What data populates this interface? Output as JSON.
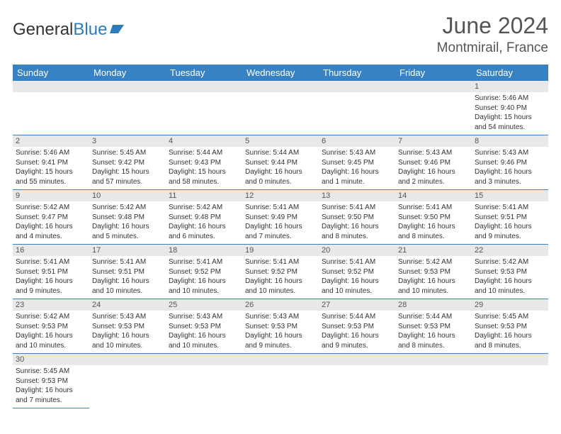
{
  "logo": {
    "prefix": "General",
    "suffix": "Blue"
  },
  "title": {
    "month": "June 2024",
    "location": "Montmirail, France"
  },
  "colors": {
    "header_bg": "#3882c4",
    "header_fg": "#ffffff",
    "daybar_bg": "#e8e8e8",
    "text": "#333333",
    "rule": "#3882c4"
  },
  "weekdays": [
    "Sunday",
    "Monday",
    "Tuesday",
    "Wednesday",
    "Thursday",
    "Friday",
    "Saturday"
  ],
  "weeks": [
    [
      null,
      null,
      null,
      null,
      null,
      null,
      {
        "n": "1",
        "sr": "Sunrise: 5:46 AM",
        "ss": "Sunset: 9:40 PM",
        "d1": "Daylight: 15 hours",
        "d2": "and 54 minutes."
      }
    ],
    [
      {
        "n": "2",
        "sr": "Sunrise: 5:46 AM",
        "ss": "Sunset: 9:41 PM",
        "d1": "Daylight: 15 hours",
        "d2": "and 55 minutes."
      },
      {
        "n": "3",
        "sr": "Sunrise: 5:45 AM",
        "ss": "Sunset: 9:42 PM",
        "d1": "Daylight: 15 hours",
        "d2": "and 57 minutes."
      },
      {
        "n": "4",
        "sr": "Sunrise: 5:44 AM",
        "ss": "Sunset: 9:43 PM",
        "d1": "Daylight: 15 hours",
        "d2": "and 58 minutes."
      },
      {
        "n": "5",
        "sr": "Sunrise: 5:44 AM",
        "ss": "Sunset: 9:44 PM",
        "d1": "Daylight: 16 hours",
        "d2": "and 0 minutes."
      },
      {
        "n": "6",
        "sr": "Sunrise: 5:43 AM",
        "ss": "Sunset: 9:45 PM",
        "d1": "Daylight: 16 hours",
        "d2": "and 1 minute."
      },
      {
        "n": "7",
        "sr": "Sunrise: 5:43 AM",
        "ss": "Sunset: 9:46 PM",
        "d1": "Daylight: 16 hours",
        "d2": "and 2 minutes."
      },
      {
        "n": "8",
        "sr": "Sunrise: 5:43 AM",
        "ss": "Sunset: 9:46 PM",
        "d1": "Daylight: 16 hours",
        "d2": "and 3 minutes."
      }
    ],
    [
      {
        "n": "9",
        "sr": "Sunrise: 5:42 AM",
        "ss": "Sunset: 9:47 PM",
        "d1": "Daylight: 16 hours",
        "d2": "and 4 minutes."
      },
      {
        "n": "10",
        "sr": "Sunrise: 5:42 AM",
        "ss": "Sunset: 9:48 PM",
        "d1": "Daylight: 16 hours",
        "d2": "and 5 minutes."
      },
      {
        "n": "11",
        "sr": "Sunrise: 5:42 AM",
        "ss": "Sunset: 9:48 PM",
        "d1": "Daylight: 16 hours",
        "d2": "and 6 minutes."
      },
      {
        "n": "12",
        "sr": "Sunrise: 5:41 AM",
        "ss": "Sunset: 9:49 PM",
        "d1": "Daylight: 16 hours",
        "d2": "and 7 minutes."
      },
      {
        "n": "13",
        "sr": "Sunrise: 5:41 AM",
        "ss": "Sunset: 9:50 PM",
        "d1": "Daylight: 16 hours",
        "d2": "and 8 minutes."
      },
      {
        "n": "14",
        "sr": "Sunrise: 5:41 AM",
        "ss": "Sunset: 9:50 PM",
        "d1": "Daylight: 16 hours",
        "d2": "and 8 minutes."
      },
      {
        "n": "15",
        "sr": "Sunrise: 5:41 AM",
        "ss": "Sunset: 9:51 PM",
        "d1": "Daylight: 16 hours",
        "d2": "and 9 minutes."
      }
    ],
    [
      {
        "n": "16",
        "sr": "Sunrise: 5:41 AM",
        "ss": "Sunset: 9:51 PM",
        "d1": "Daylight: 16 hours",
        "d2": "and 9 minutes."
      },
      {
        "n": "17",
        "sr": "Sunrise: 5:41 AM",
        "ss": "Sunset: 9:51 PM",
        "d1": "Daylight: 16 hours",
        "d2": "and 10 minutes."
      },
      {
        "n": "18",
        "sr": "Sunrise: 5:41 AM",
        "ss": "Sunset: 9:52 PM",
        "d1": "Daylight: 16 hours",
        "d2": "and 10 minutes."
      },
      {
        "n": "19",
        "sr": "Sunrise: 5:41 AM",
        "ss": "Sunset: 9:52 PM",
        "d1": "Daylight: 16 hours",
        "d2": "and 10 minutes."
      },
      {
        "n": "20",
        "sr": "Sunrise: 5:41 AM",
        "ss": "Sunset: 9:52 PM",
        "d1": "Daylight: 16 hours",
        "d2": "and 10 minutes."
      },
      {
        "n": "21",
        "sr": "Sunrise: 5:42 AM",
        "ss": "Sunset: 9:53 PM",
        "d1": "Daylight: 16 hours",
        "d2": "and 10 minutes."
      },
      {
        "n": "22",
        "sr": "Sunrise: 5:42 AM",
        "ss": "Sunset: 9:53 PM",
        "d1": "Daylight: 16 hours",
        "d2": "and 10 minutes."
      }
    ],
    [
      {
        "n": "23",
        "sr": "Sunrise: 5:42 AM",
        "ss": "Sunset: 9:53 PM",
        "d1": "Daylight: 16 hours",
        "d2": "and 10 minutes."
      },
      {
        "n": "24",
        "sr": "Sunrise: 5:43 AM",
        "ss": "Sunset: 9:53 PM",
        "d1": "Daylight: 16 hours",
        "d2": "and 10 minutes."
      },
      {
        "n": "25",
        "sr": "Sunrise: 5:43 AM",
        "ss": "Sunset: 9:53 PM",
        "d1": "Daylight: 16 hours",
        "d2": "and 10 minutes."
      },
      {
        "n": "26",
        "sr": "Sunrise: 5:43 AM",
        "ss": "Sunset: 9:53 PM",
        "d1": "Daylight: 16 hours",
        "d2": "and 9 minutes."
      },
      {
        "n": "27",
        "sr": "Sunrise: 5:44 AM",
        "ss": "Sunset: 9:53 PM",
        "d1": "Daylight: 16 hours",
        "d2": "and 9 minutes."
      },
      {
        "n": "28",
        "sr": "Sunrise: 5:44 AM",
        "ss": "Sunset: 9:53 PM",
        "d1": "Daylight: 16 hours",
        "d2": "and 8 minutes."
      },
      {
        "n": "29",
        "sr": "Sunrise: 5:45 AM",
        "ss": "Sunset: 9:53 PM",
        "d1": "Daylight: 16 hours",
        "d2": "and 8 minutes."
      }
    ],
    [
      {
        "n": "30",
        "sr": "Sunrise: 5:45 AM",
        "ss": "Sunset: 9:53 PM",
        "d1": "Daylight: 16 hours",
        "d2": "and 7 minutes."
      },
      null,
      null,
      null,
      null,
      null,
      null
    ]
  ]
}
